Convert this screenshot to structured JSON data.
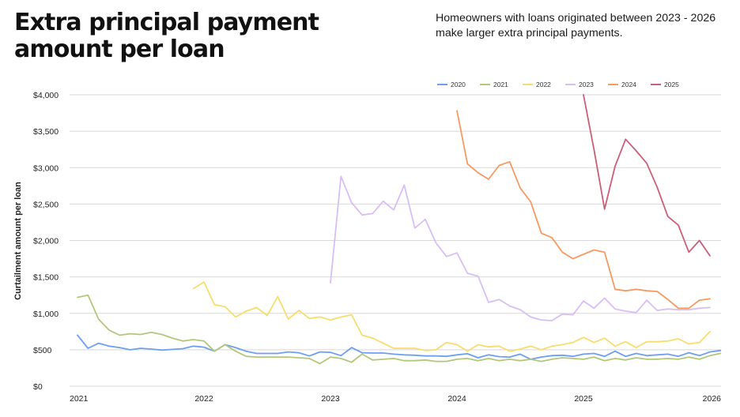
{
  "title": "Extra principal payment amount per loan",
  "subtitle": "Homeowners with loans originated between 2023 - 2026 make larger extra principal payments.",
  "chart_data": {
    "type": "line",
    "ylabel": "Curtailment amount per loan",
    "xlabel": "",
    "ylim": [
      0,
      4000
    ],
    "xlim": [
      2021,
      2026
    ],
    "y_ticks": [
      {
        "value": 0,
        "label": "$0"
      },
      {
        "value": 500,
        "label": "$500"
      },
      {
        "value": 1000,
        "label": "$1,000"
      },
      {
        "value": 1500,
        "label": "$1,500"
      },
      {
        "value": 2000,
        "label": "$2,000"
      },
      {
        "value": 2500,
        "label": "$2,500"
      },
      {
        "value": 3000,
        "label": "$3,000"
      },
      {
        "value": 3500,
        "label": "$3,500"
      },
      {
        "value": 4000,
        "label": "$4,000"
      }
    ],
    "x_ticks": [
      "2021",
      "2022",
      "2023",
      "2024",
      "2025",
      "2026"
    ],
    "grid": "horizontal",
    "legend_position": "top-right",
    "series": [
      {
        "name": "2020",
        "color": "#6f9ff0",
        "x_start": "2021-01",
        "values": [
          700,
          520,
          590,
          550,
          530,
          500,
          520,
          510,
          495,
          505,
          515,
          550,
          535,
          480,
          570,
          530,
          480,
          450,
          450,
          450,
          470,
          460,
          415,
          470,
          465,
          420,
          530,
          460,
          455,
          455,
          440,
          430,
          425,
          415,
          415,
          410,
          430,
          445,
          390,
          430,
          405,
          400,
          440,
          370,
          400,
          420,
          425,
          410,
          440,
          450,
          410,
          480,
          410,
          450,
          420,
          430,
          440,
          410,
          460,
          420,
          470,
          490
        ]
      },
      {
        "name": "2021",
        "color": "#b3c779",
        "x_start": "2021-01",
        "values": [
          1220,
          1250,
          920,
          770,
          700,
          720,
          710,
          740,
          710,
          660,
          620,
          640,
          620,
          480,
          570,
          480,
          410,
          400,
          400,
          400,
          400,
          390,
          380,
          310,
          400,
          380,
          330,
          440,
          360,
          370,
          380,
          350,
          350,
          360,
          340,
          340,
          370,
          380,
          350,
          380,
          350,
          370,
          350,
          370,
          340,
          370,
          390,
          380,
          370,
          400,
          350,
          380,
          360,
          390,
          370,
          370,
          380,
          370,
          400,
          370,
          420,
          450
        ]
      },
      {
        "name": "2022",
        "color": "#f6dd6c",
        "x_start": "2021-12",
        "values": [
          1340,
          1430,
          1120,
          1090,
          950,
          1030,
          1080,
          970,
          1230,
          920,
          1040,
          930,
          950,
          910,
          950,
          980,
          700,
          660,
          590,
          520,
          520,
          520,
          490,
          500,
          600,
          570,
          480,
          570,
          540,
          550,
          480,
          510,
          550,
          500,
          550,
          570,
          600,
          670,
          600,
          660,
          550,
          610,
          530,
          610,
          610,
          620,
          650,
          580,
          600,
          750
        ]
      },
      {
        "name": "2023",
        "color": "#d9bdf5",
        "x_start": "2023-01",
        "values": [
          1420,
          2880,
          2520,
          2350,
          2370,
          2540,
          2420,
          2760,
          2170,
          2290,
          1970,
          1780,
          1830,
          1550,
          1510,
          1150,
          1190,
          1100,
          1050,
          950,
          910,
          900,
          990,
          980,
          1170,
          1070,
          1210,
          1060,
          1030,
          1010,
          1180,
          1040,
          1060,
          1050,
          1050,
          1070,
          1080
        ]
      },
      {
        "name": "2024",
        "color": "#f59a61",
        "x_start": "2024-01",
        "values": [
          3780,
          3050,
          2930,
          2840,
          3030,
          3080,
          2720,
          2530,
          2100,
          2040,
          1840,
          1750,
          1810,
          1870,
          1840,
          1330,
          1310,
          1330,
          1310,
          1300,
          1190,
          1070,
          1070,
          1180,
          1200
        ]
      },
      {
        "name": "2025",
        "color": "#c95f79",
        "x_start": "2025-01",
        "values": [
          4000,
          3250,
          2430,
          3020,
          3390,
          3230,
          3060,
          2730,
          2330,
          2210,
          1840,
          2000,
          1790
        ]
      }
    ]
  }
}
